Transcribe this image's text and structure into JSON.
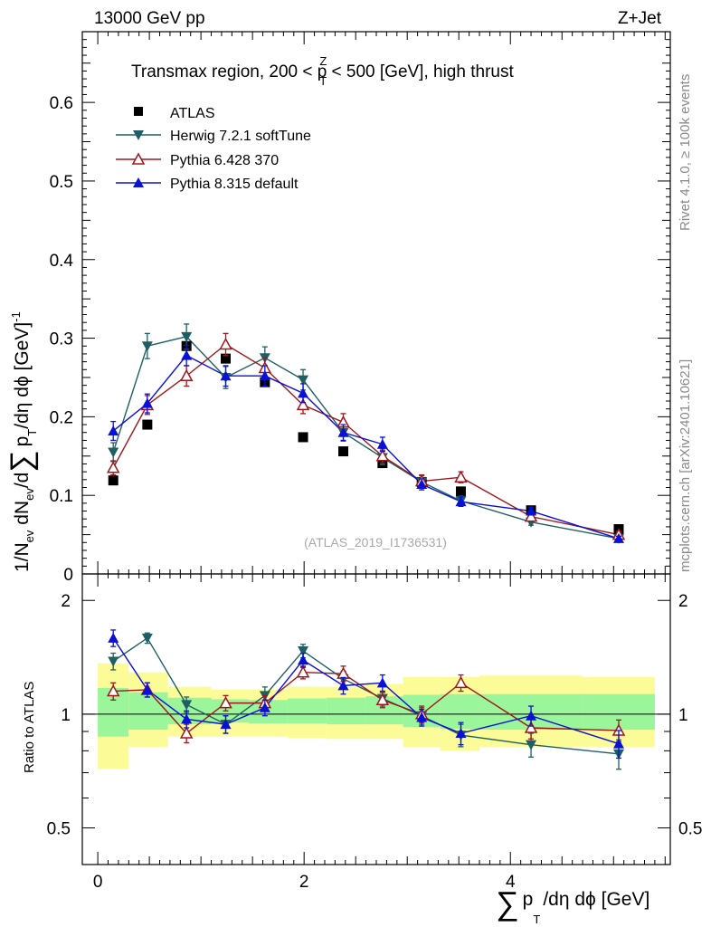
{
  "header": {
    "left": "13000 GeV pp",
    "right": "Z+Jet"
  },
  "side": {
    "rivet": "Rivet 4.1.0, ≥ 100k events",
    "mcplots": "mcplots.cern.ch [arXiv:2401.10621]"
  },
  "watermark": "(ATLAS_2019_I1736531)",
  "chart_data": {
    "type": "scatter",
    "title": {
      "prefix": "Transmax region, 200 < p",
      "sup": "Z",
      "sub": "T",
      "suffix": " < 500 [GeV], high thrust"
    },
    "xlim": [
      -0.15,
      5.55
    ],
    "x_ticks": [
      0,
      2,
      4
    ],
    "x_tick_labels": [
      "0",
      "2",
      "4"
    ],
    "xlabel": {
      "sigma": "∑",
      "p": "p",
      "sub": "T",
      "rest": "/dη dϕ [GeV]"
    },
    "main": {
      "ylim": [
        0,
        0.69
      ],
      "y_ticks": [
        0.1,
        0.2,
        0.3,
        0.4,
        0.5,
        0.6
      ],
      "y_tick_labels": [
        "0.1",
        "0.2",
        "0.3",
        "0.4",
        "0.5",
        "0.6"
      ],
      "y_zero_label": "0",
      "ylabel": {
        "a": "1/N",
        "a_sub": "ev",
        "b": " dN",
        "b_sub": "ev",
        "c": "/d",
        "sigma": "∑",
        "d": "p",
        "d_sub": "T",
        "e": "/dη dϕ  [GeV]",
        "e_sup": "-1"
      }
    },
    "ratio": {
      "ylabel": "Ratio to ATLAS",
      "y_ticks": [
        0.5,
        1,
        2
      ],
      "y_tick_labels": [
        "0.5",
        "1",
        "2"
      ],
      "ylim": [
        0.4,
        2.35
      ],
      "bands": [
        {
          "x0": 0.0,
          "x1": 0.3,
          "g_lo": 0.872,
          "g_hi": 1.173,
          "y_lo": 0.717,
          "y_hi": 1.363
        },
        {
          "x0": 0.3,
          "x1": 0.68,
          "g_lo": 0.91,
          "g_hi": 1.143,
          "y_lo": 0.82,
          "y_hi": 1.29
        },
        {
          "x0": 0.68,
          "x1": 1.1,
          "g_lo": 0.94,
          "g_hi": 1.105,
          "y_lo": 0.872,
          "y_hi": 1.182
        },
        {
          "x0": 1.1,
          "x1": 1.46,
          "g_lo": 0.95,
          "g_hi": 1.095,
          "y_lo": 0.872,
          "y_hi": 1.162
        },
        {
          "x0": 1.46,
          "x1": 1.84,
          "g_lo": 0.945,
          "g_hi": 1.09,
          "y_lo": 0.872,
          "y_hi": 1.162
        },
        {
          "x0": 1.84,
          "x1": 2.22,
          "g_lo": 0.945,
          "g_hi": 1.1,
          "y_lo": 0.865,
          "y_hi": 1.182
        },
        {
          "x0": 2.22,
          "x1": 2.6,
          "g_lo": 0.94,
          "g_hi": 1.105,
          "y_lo": 0.86,
          "y_hi": 1.182
        },
        {
          "x0": 2.6,
          "x1": 2.96,
          "g_lo": 0.94,
          "g_hi": 1.115,
          "y_lo": 0.86,
          "y_hi": 1.202
        },
        {
          "x0": 2.96,
          "x1": 3.32,
          "g_lo": 0.925,
          "g_hi": 1.125,
          "y_lo": 0.82,
          "y_hi": 1.255
        },
        {
          "x0": 3.32,
          "x1": 3.7,
          "g_lo": 0.915,
          "g_hi": 1.13,
          "y_lo": 0.8,
          "y_hi": 1.255
        },
        {
          "x0": 3.7,
          "x1": 4.7,
          "g_lo": 0.91,
          "g_hi": 1.13,
          "y_lo": 0.82,
          "y_hi": 1.265
        },
        {
          "x0": 4.7,
          "x1": 5.4,
          "g_lo": 0.91,
          "g_hi": 1.13,
          "y_lo": 0.82,
          "y_hi": 1.255
        }
      ]
    },
    "x": [
      0.15,
      0.48,
      0.86,
      1.24,
      1.62,
      1.99,
      2.38,
      2.76,
      3.14,
      3.52,
      4.2,
      5.05
    ],
    "series": [
      {
        "name": "ATLAS",
        "color": "#000000",
        "marker": "square",
        "values": [
          0.119,
          0.19,
          0.29,
          0.274,
          0.244,
          0.174,
          0.156,
          0.141,
          0.117,
          0.105,
          0.081,
          0.057
        ],
        "errors": [
          0,
          0,
          0,
          0,
          0,
          0,
          0,
          0,
          0,
          0,
          0,
          0
        ],
        "ratio": [
          1,
          1,
          1,
          1,
          1,
          1,
          1,
          1,
          1,
          1,
          1,
          1
        ],
        "ratio_errors": [
          0,
          0,
          0,
          0,
          0,
          0,
          0,
          0,
          0,
          0,
          0,
          0
        ]
      },
      {
        "name": "Herwig 7.2.1 softTune",
        "color": "#1f5f63",
        "marker": "triangle-down",
        "values": [
          0.155,
          0.29,
          0.302,
          0.25,
          0.275,
          0.247,
          0.18,
          0.148,
          0.117,
          0.093,
          0.066,
          0.045
        ],
        "errors": [
          0.012,
          0.016,
          0.016,
          0.014,
          0.014,
          0.013,
          0.011,
          0.009,
          0.008,
          0.006,
          0.004,
          0.003
        ],
        "ratio": [
          1.38,
          1.59,
          1.06,
          0.94,
          1.12,
          1.47,
          1.24,
          1.1,
          0.99,
          0.88,
          0.83,
          0.785
        ],
        "ratio_errors": [
          0.07,
          0.05,
          0.05,
          0.05,
          0.06,
          0.06,
          0.06,
          0.05,
          0.05,
          0.06,
          0.06,
          0.07
        ]
      },
      {
        "name": "Pythia 6.428 370",
        "color": "#a0161b",
        "marker": "triangle-up-open",
        "values": [
          0.135,
          0.215,
          0.252,
          0.292,
          0.262,
          0.215,
          0.193,
          0.15,
          0.118,
          0.123,
          0.073,
          0.05
        ],
        "errors": [
          0.009,
          0.012,
          0.013,
          0.014,
          0.013,
          0.011,
          0.011,
          0.009,
          0.008,
          0.007,
          0.005,
          0.004
        ],
        "ratio": [
          1.15,
          1.16,
          0.89,
          1.07,
          1.07,
          1.29,
          1.28,
          1.09,
          1.0,
          1.21,
          0.92,
          0.905
        ],
        "ratio_errors": [
          0.06,
          0.05,
          0.05,
          0.05,
          0.05,
          0.05,
          0.06,
          0.05,
          0.05,
          0.06,
          0.06,
          0.06
        ]
      },
      {
        "name": "Pythia 8.315 default",
        "color": "#0b10d6",
        "marker": "triangle-up",
        "values": [
          0.182,
          0.217,
          0.278,
          0.252,
          0.252,
          0.23,
          0.18,
          0.165,
          0.114,
          0.092,
          0.08,
          0.045
        ],
        "errors": [
          0.012,
          0.012,
          0.013,
          0.013,
          0.013,
          0.012,
          0.01,
          0.009,
          0.007,
          0.006,
          0.005,
          0.003
        ],
        "ratio": [
          1.59,
          1.16,
          0.97,
          0.94,
          1.04,
          1.39,
          1.19,
          1.21,
          0.98,
          0.89,
          0.99,
          0.835
        ],
        "ratio_errors": [
          0.08,
          0.05,
          0.05,
          0.05,
          0.05,
          0.06,
          0.06,
          0.06,
          0.05,
          0.06,
          0.06,
          0.07
        ]
      }
    ]
  }
}
